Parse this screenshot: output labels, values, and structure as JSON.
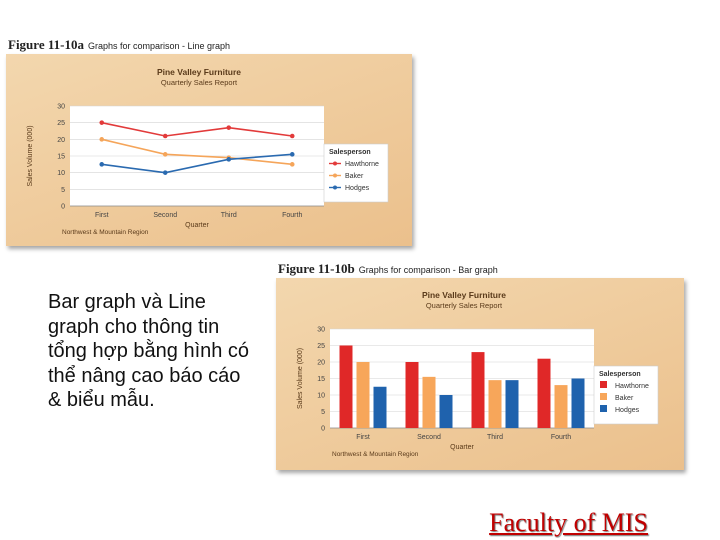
{
  "figure_a": {
    "number": "Figure 11-10a",
    "caption": "Graphs for comparison - Line graph"
  },
  "figure_b": {
    "number": "Figure 11-10b",
    "caption": "Graphs for comparison - Bar graph"
  },
  "body_text": "Bar graph và Line graph cho thông tin tổng hợp bằng hình có thể nâng cao báo cáo & biểu mẫu.",
  "footer_link": "Faculty of MIS",
  "chart_data": [
    {
      "type": "line",
      "title": "Pine Valley Furniture",
      "subtitle": "Quarterly Sales Report",
      "xlabel": "Quarter",
      "ylabel": "Sales Volume (000)",
      "footnote": "Northwest & Mountain Region",
      "categories": [
        "First",
        "Second",
        "Third",
        "Fourth"
      ],
      "ylim": [
        0,
        30
      ],
      "yticks": [
        0,
        5,
        10,
        15,
        20,
        25,
        30
      ],
      "legend_title": "Salesperson",
      "legend_position": "right",
      "series": [
        {
          "name": "Hawthorne",
          "color": "#e23a3a",
          "values": [
            25,
            21,
            23.5,
            21
          ]
        },
        {
          "name": "Baker",
          "color": "#f5a55a",
          "values": [
            20,
            15.5,
            14.5,
            12.5
          ]
        },
        {
          "name": "Hodges",
          "color": "#2a6ab0",
          "values": [
            12.5,
            10,
            14,
            15.5
          ]
        }
      ]
    },
    {
      "type": "bar",
      "title": "Pine Valley Furniture",
      "subtitle": "Quarterly Sales Report",
      "xlabel": "Quarter",
      "ylabel": "Sales Volume (000)",
      "footnote": "Northwest & Mountain Region",
      "categories": [
        "First",
        "Second",
        "Third",
        "Fourth"
      ],
      "ylim": [
        0,
        30
      ],
      "yticks": [
        0,
        5,
        10,
        15,
        20,
        25,
        30
      ],
      "legend_title": "Salesperson",
      "legend_position": "right",
      "series": [
        {
          "name": "Hawthorne",
          "color": "#e02828",
          "values": [
            25,
            20,
            23,
            21
          ]
        },
        {
          "name": "Baker",
          "color": "#f7a65a",
          "values": [
            20,
            15.5,
            14.5,
            13
          ]
        },
        {
          "name": "Hodges",
          "color": "#1f62ad",
          "values": [
            12.5,
            10,
            14.5,
            15
          ]
        }
      ]
    }
  ]
}
